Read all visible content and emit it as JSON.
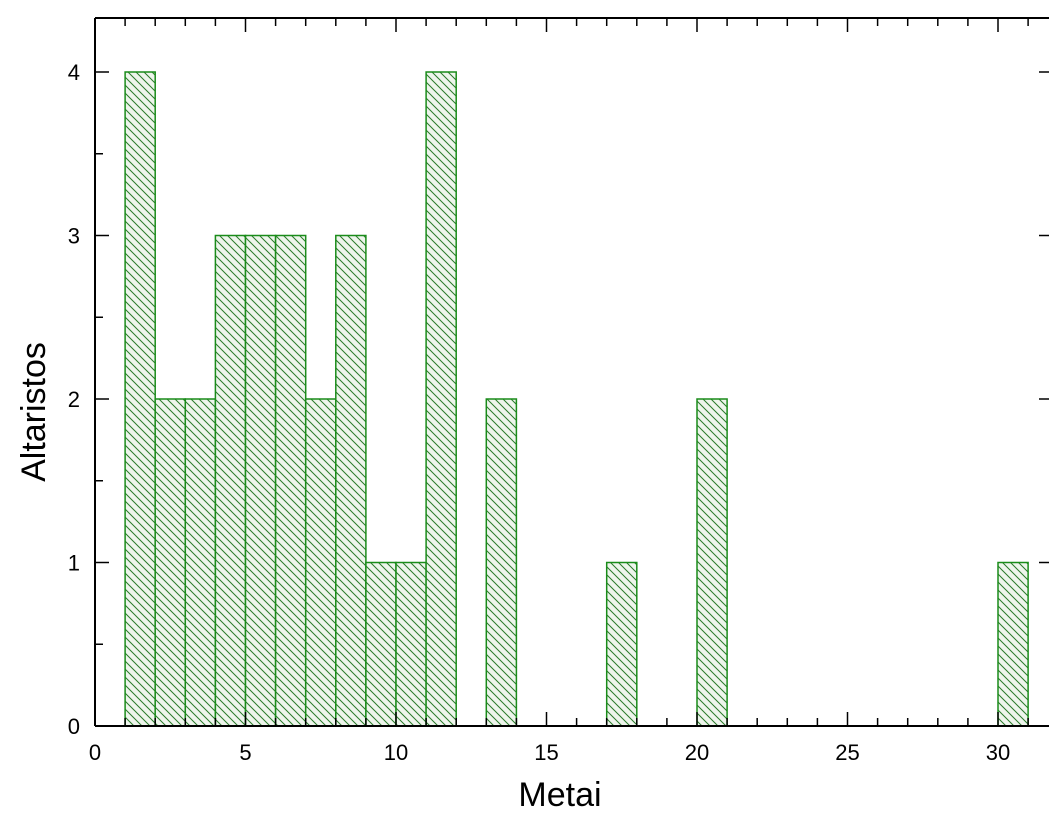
{
  "chart_data": {
    "type": "bar",
    "subtype": "histogram",
    "title": "",
    "xlabel": "Metai",
    "ylabel": "Altaristos",
    "xlim": [
      0,
      32
    ],
    "ylim": [
      0,
      4.3
    ],
    "x_ticks": [
      "0",
      "5",
      "10",
      "15",
      "20",
      "25",
      "30"
    ],
    "y_ticks": [
      "0",
      "1",
      "2",
      "3",
      "4"
    ],
    "grid": false,
    "legend": "none",
    "bin_width": 1,
    "bins": [
      {
        "start": 1,
        "end": 2,
        "value": 4
      },
      {
        "start": 2,
        "end": 3,
        "value": 2
      },
      {
        "start": 3,
        "end": 4,
        "value": 2
      },
      {
        "start": 4,
        "end": 5,
        "value": 3
      },
      {
        "start": 5,
        "end": 6,
        "value": 3
      },
      {
        "start": 6,
        "end": 7,
        "value": 3
      },
      {
        "start": 7,
        "end": 8,
        "value": 2
      },
      {
        "start": 8,
        "end": 9,
        "value": 3
      },
      {
        "start": 9,
        "end": 10,
        "value": 1
      },
      {
        "start": 10,
        "end": 11,
        "value": 1
      },
      {
        "start": 11,
        "end": 12,
        "value": 4
      },
      {
        "start": 13,
        "end": 14,
        "value": 2
      },
      {
        "start": 17,
        "end": 18,
        "value": 1
      },
      {
        "start": 20,
        "end": 21,
        "value": 2
      },
      {
        "start": 30,
        "end": 31,
        "value": 1
      }
    ],
    "colors": {
      "bar_edge": "#1a8c1a",
      "bar_fill": "#eef5ec",
      "hatch": "#2a7a2a",
      "axis": "#000000"
    },
    "fill_pattern": "diagonal-hatch"
  }
}
